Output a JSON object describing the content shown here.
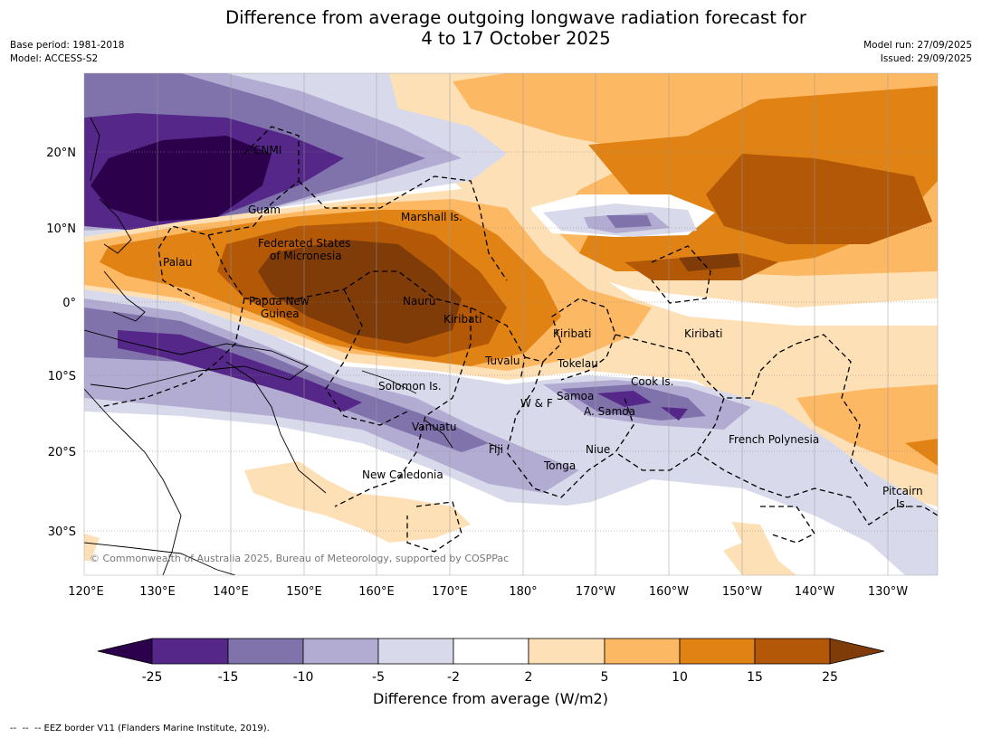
{
  "title": {
    "line1": "Difference from average outgoing longwave radiation forecast for",
    "line2": "4 to 17 October 2025"
  },
  "meta_left": {
    "base_period": "Base period: 1981-2018",
    "model": "Model: ACCESS-S2"
  },
  "meta_right": {
    "model_run": "Model run: 27/09/2025",
    "issued": "Issued: 29/09/2025"
  },
  "axes": {
    "lat_labels": [
      "20°N",
      "10°N",
      "0°",
      "10°S",
      "20°S",
      "30°S"
    ],
    "lon_labels": [
      "120°E",
      "130°E",
      "140°E",
      "150°E",
      "160°E",
      "170°E",
      "180°",
      "170°W",
      "160°W",
      "150°W",
      "140°W",
      "130°W"
    ]
  },
  "region_labels": [
    "CNMI",
    "Guam",
    "Marshall Is.",
    "Federated States",
    "of Micronesia",
    "Palau",
    "Papua New",
    "Guinea",
    "Nauru",
    "Kiribati",
    "Kiribati",
    "Kiribati",
    "Tuvalu",
    "Tokelau",
    "Cook Is.",
    "Solomon Is.",
    "W & F",
    "Samoa",
    "A. Samoa",
    "Vanuatu",
    "Fiji",
    "Niue",
    "Tonga",
    "French Polynesia",
    "New Caledonia",
    "Pitcairn",
    "Is."
  ],
  "copyright": "© Commonwealth of Australia 2025, Bureau of Meteorology, supported by COSPPac",
  "colorbar": {
    "ticks": [
      "-25",
      "-15",
      "-10",
      "-5",
      "-2",
      "2",
      "5",
      "10",
      "15",
      "25"
    ],
    "label": "Difference from average (W/m2)",
    "colors": {
      "lt_minus25": "#2d004b",
      "m25_m15": "#542788",
      "m15_m10": "#8073ac",
      "m10_m5": "#b2abd2",
      "m5_m2": "#d8daeb",
      "m2_p2": "#ffffff",
      "p2_p5": "#fee0b6",
      "p5_p10": "#fdb863",
      "p10_p15": "#e08214",
      "p15_p25": "#b35806",
      "gt_p25": "#7f3b08"
    }
  },
  "legend_line": "--  --  -- EEZ border V11 (Flanders Marine Institute, 2019)."
}
